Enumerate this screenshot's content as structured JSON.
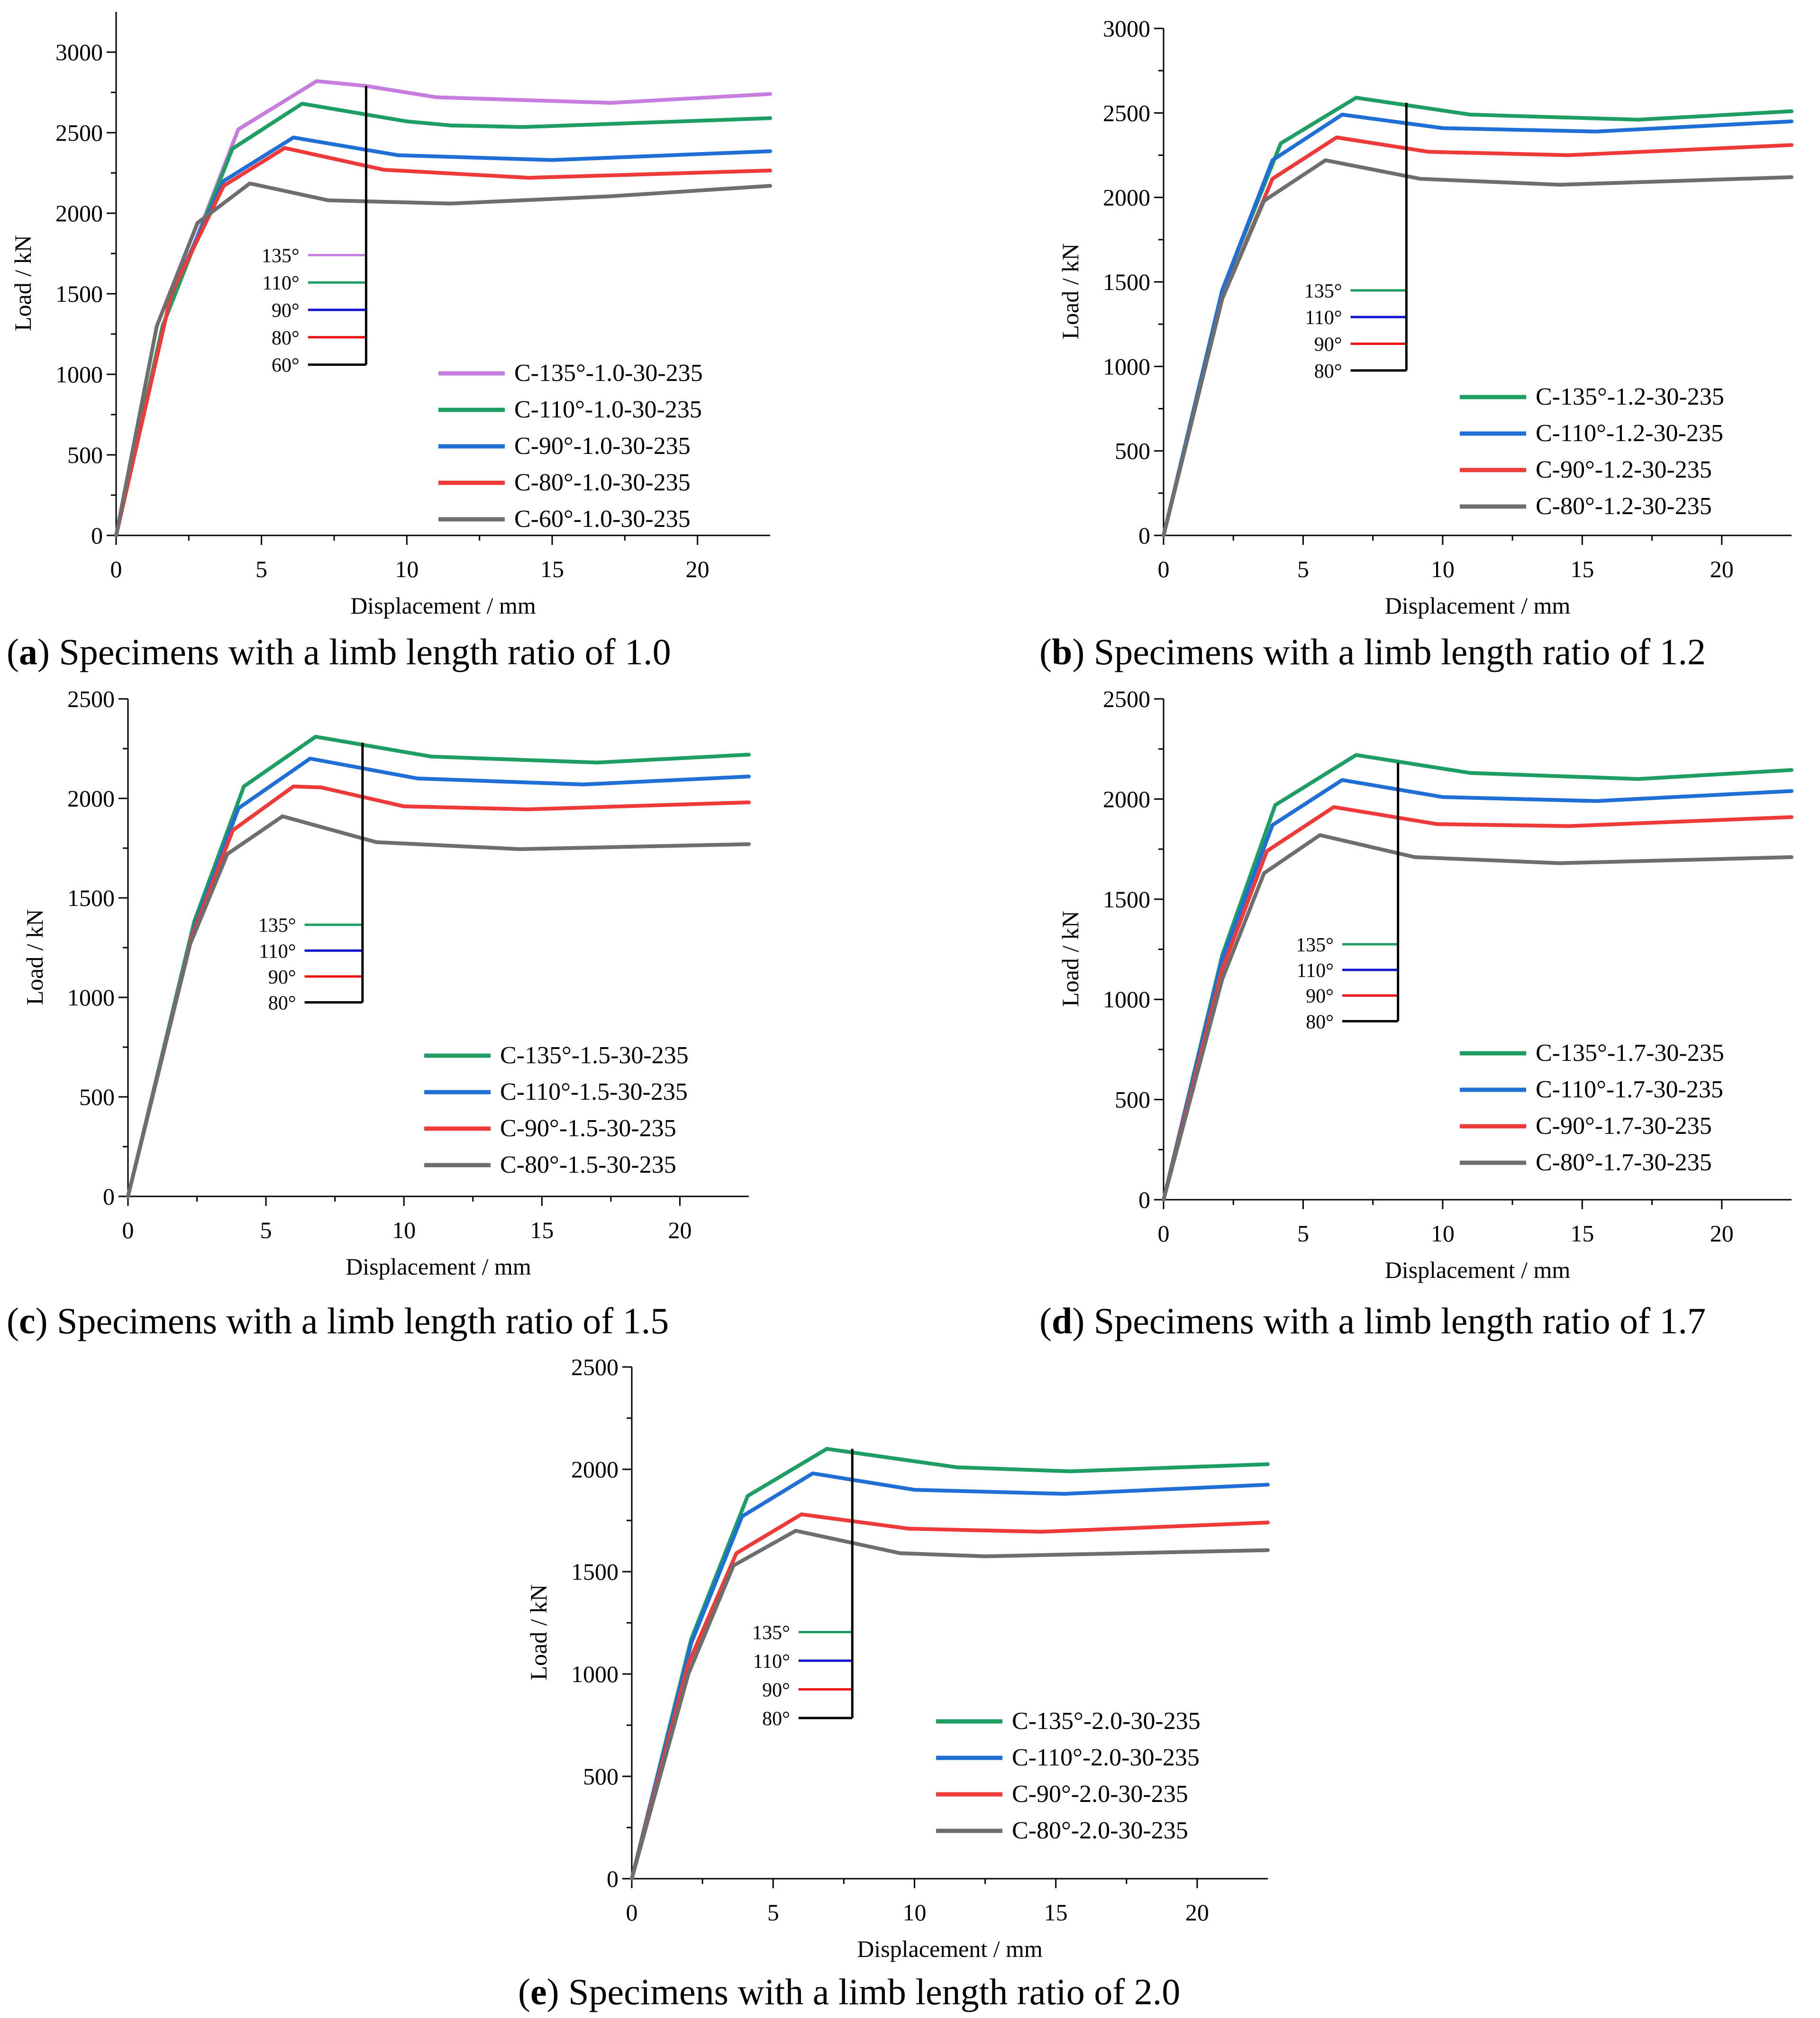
{
  "figure": {
    "panels": [
      {
        "caption_letter": "a",
        "caption_text": " Specimens with a limb length ratio of 1.0"
      },
      {
        "caption_letter": "b",
        "caption_text": " Specimens with a limb length ratio of 1.2"
      },
      {
        "caption_letter": "c",
        "caption_text": " Specimens with a limb length ratio of 1.5"
      },
      {
        "caption_letter": "d",
        "caption_text": " Specimens with a limb length ratio of 1.7"
      },
      {
        "caption_letter": "e",
        "caption_text": " Specimens with a limb length ratio of 2.0"
      }
    ]
  },
  "chart_data": [
    {
      "type": "line",
      "panel": "a",
      "xlabel": "Displacement / mm",
      "ylabel": "Load / kN",
      "xlim": [
        0,
        22.5
      ],
      "ylim": [
        0,
        3250
      ],
      "xticks": [
        0,
        5,
        10,
        15,
        20
      ],
      "yticks": [
        0,
        500,
        1000,
        1500,
        2000,
        2500,
        3000
      ],
      "legend_position": "bottom-right",
      "series": [
        {
          "name": "C-135°-1.0-30-235",
          "color": "#c77ce0",
          "points": [
            [
              0,
              0
            ],
            [
              1.6,
              1300
            ],
            [
              4.2,
              2520
            ],
            [
              6.9,
              2820
            ],
            [
              8.6,
              2790
            ],
            [
              11,
              2720
            ],
            [
              17,
              2685
            ],
            [
              22.5,
              2740
            ]
          ]
        },
        {
          "name": "C-110°-1.0-30-235",
          "color": "#1e9e62",
          "points": [
            [
              0,
              0
            ],
            [
              1.6,
              1300
            ],
            [
              4,
              2400
            ],
            [
              6.4,
              2680
            ],
            [
              10,
              2570
            ],
            [
              11.5,
              2545
            ],
            [
              14,
              2535
            ],
            [
              22.5,
              2590
            ]
          ]
        },
        {
          "name": "C-90°-1.0-30-235",
          "color": "#1f6fd6",
          "points": [
            [
              0,
              0
            ],
            [
              1.9,
              1500
            ],
            [
              3.7,
              2200
            ],
            [
              6.1,
              2470
            ],
            [
              9.7,
              2360
            ],
            [
              15,
              2330
            ],
            [
              22.5,
              2385
            ]
          ]
        },
        {
          "name": "C-80°-1.0-30-235",
          "color": "#ee3a39",
          "points": [
            [
              0,
              0
            ],
            [
              1.9,
              1500
            ],
            [
              3.7,
              2170
            ],
            [
              5.8,
              2405
            ],
            [
              9.2,
              2270
            ],
            [
              14.2,
              2220
            ],
            [
              22.5,
              2265
            ]
          ]
        },
        {
          "name": "C-60°-1.0-30-235",
          "color": "#6e6e6e",
          "points": [
            [
              0,
              0
            ],
            [
              1.4,
              1300
            ],
            [
              2.8,
              1940
            ],
            [
              4.6,
              2185
            ],
            [
              7.3,
              2080
            ],
            [
              11.5,
              2060
            ],
            [
              17,
              2105
            ],
            [
              22.5,
              2170
            ]
          ]
        }
      ],
      "inset_legend": {
        "labels": [
          "135°",
          "110°",
          "90°",
          "80°",
          "60°"
        ],
        "colors": [
          "#c77ce0",
          "#1e9e62",
          "#1010d0",
          "#ee1111",
          "#000000"
        ],
        "x_line": [
          6.6,
          8.6
        ],
        "y_start": 1740,
        "y_step": 170,
        "bracket_x": 8.6,
        "bracket_top": 2790
      }
    },
    {
      "type": "line",
      "panel": "b",
      "xlabel": "Displacement / mm",
      "ylabel": "Load / kN",
      "xlim": [
        0,
        22.5
      ],
      "ylim": [
        0,
        3000
      ],
      "xticks": [
        0,
        5,
        10,
        15,
        20
      ],
      "yticks": [
        0,
        500,
        1000,
        1500,
        2000,
        2500,
        3000
      ],
      "legend_position": "bottom-right",
      "series": [
        {
          "name": "C-135°-1.2-30-235",
          "color": "#1e9e62",
          "points": [
            [
              0,
              0
            ],
            [
              2.1,
              1450
            ],
            [
              4.2,
              2320
            ],
            [
              6.9,
              2590
            ],
            [
              11,
              2490
            ],
            [
              17,
              2460
            ],
            [
              22.5,
              2510
            ]
          ]
        },
        {
          "name": "C-110°-1.2-30-235",
          "color": "#1f6fd6",
          "points": [
            [
              0,
              0
            ],
            [
              2.1,
              1450
            ],
            [
              3.9,
              2220
            ],
            [
              6.4,
              2490
            ],
            [
              10,
              2410
            ],
            [
              15.5,
              2390
            ],
            [
              22.5,
              2450
            ]
          ]
        },
        {
          "name": "C-90°-1.2-30-235",
          "color": "#ee3a39",
          "points": [
            [
              0,
              0
            ],
            [
              2.1,
              1400
            ],
            [
              3.9,
              2110
            ],
            [
              6.2,
              2355
            ],
            [
              9.5,
              2270
            ],
            [
              14.5,
              2250
            ],
            [
              22.5,
              2310
            ]
          ]
        },
        {
          "name": "C-80°-1.2-30-235",
          "color": "#6e6e6e",
          "points": [
            [
              0,
              0
            ],
            [
              2.1,
              1400
            ],
            [
              3.6,
              1980
            ],
            [
              5.8,
              2220
            ],
            [
              9.2,
              2110
            ],
            [
              14.2,
              2075
            ],
            [
              22.5,
              2120
            ]
          ]
        }
      ],
      "inset_legend": {
        "labels": [
          "135°",
          "110°",
          "90°",
          "80°"
        ],
        "colors": [
          "#1e9e62",
          "#1010d0",
          "#ee1111",
          "#000000"
        ],
        "x_line": [
          6.7,
          8.7
        ],
        "y_start": 1450,
        "y_step": 158,
        "bracket_x": 8.7,
        "bracket_top": 2560
      }
    },
    {
      "type": "line",
      "panel": "c",
      "xlabel": "Displacement / mm",
      "ylabel": "Load / kN",
      "xlim": [
        0,
        22.5
      ],
      "ylim": [
        0,
        2500
      ],
      "xticks": [
        0,
        5,
        10,
        15,
        20
      ],
      "yticks": [
        0,
        500,
        1000,
        1500,
        2000,
        2500
      ],
      "legend_position": "bottom-right",
      "series": [
        {
          "name": "C-135°-1.5-30-235",
          "color": "#1e9e62",
          "points": [
            [
              0,
              0
            ],
            [
              2.4,
              1380
            ],
            [
              4.2,
              2060
            ],
            [
              6.8,
              2310
            ],
            [
              11,
              2210
            ],
            [
              17,
              2180
            ],
            [
              22.5,
              2220
            ]
          ]
        },
        {
          "name": "C-110°-1.5-30-235",
          "color": "#1f6fd6",
          "points": [
            [
              0,
              0
            ],
            [
              2.4,
              1350
            ],
            [
              4,
              1950
            ],
            [
              6.6,
              2200
            ],
            [
              10.5,
              2100
            ],
            [
              16.5,
              2070
            ],
            [
              22.5,
              2110
            ]
          ]
        },
        {
          "name": "C-90°-1.5-30-235",
          "color": "#ee3a39",
          "points": [
            [
              0,
              0
            ],
            [
              2.3,
              1300
            ],
            [
              3.8,
              1840
            ],
            [
              6,
              2060
            ],
            [
              7,
              2055
            ],
            [
              10,
              1960
            ],
            [
              14.5,
              1945
            ],
            [
              22.5,
              1980
            ]
          ]
        },
        {
          "name": "C-80°-1.5-30-235",
          "color": "#6e6e6e",
          "points": [
            [
              0,
              0
            ],
            [
              2.2,
              1250
            ],
            [
              3.6,
              1720
            ],
            [
              5.6,
              1910
            ],
            [
              9,
              1780
            ],
            [
              14.2,
              1745
            ],
            [
              22.5,
              1770
            ]
          ]
        }
      ],
      "inset_legend": {
        "labels": [
          "135°",
          "110°",
          "90°",
          "80°"
        ],
        "colors": [
          "#1e9e62",
          "#1010d0",
          "#ee1111",
          "#000000"
        ],
        "x_line": [
          6.4,
          8.5
        ],
        "y_start": 1365,
        "y_step": 130,
        "bracket_x": 8.5,
        "bracket_top": 2280
      }
    },
    {
      "type": "line",
      "panel": "d",
      "xlabel": "Displacement / mm",
      "ylabel": "Load / kN",
      "xlim": [
        0,
        22.5
      ],
      "ylim": [
        0,
        2500
      ],
      "xticks": [
        0,
        5,
        10,
        15,
        20
      ],
      "yticks": [
        0,
        500,
        1000,
        1500,
        2000,
        2500
      ],
      "legend_position": "bottom-right",
      "series": [
        {
          "name": "C-135°-1.7-30-235",
          "color": "#1e9e62",
          "points": [
            [
              0,
              0
            ],
            [
              2.1,
              1220
            ],
            [
              4,
              1970
            ],
            [
              6.9,
              2220
            ],
            [
              11,
              2130
            ],
            [
              17,
              2100
            ],
            [
              22.5,
              2145
            ]
          ]
        },
        {
          "name": "C-110°-1.7-30-235",
          "color": "#1f6fd6",
          "points": [
            [
              0,
              0
            ],
            [
              2.1,
              1200
            ],
            [
              3.9,
              1870
            ],
            [
              6.4,
              2095
            ],
            [
              10,
              2010
            ],
            [
              15.5,
              1990
            ],
            [
              22.5,
              2040
            ]
          ]
        },
        {
          "name": "C-90°-1.7-30-235",
          "color": "#ee3a39",
          "points": [
            [
              0,
              0
            ],
            [
              2.1,
              1150
            ],
            [
              3.7,
              1740
            ],
            [
              6.1,
              1960
            ],
            [
              9.8,
              1875
            ],
            [
              14.5,
              1865
            ],
            [
              22.5,
              1910
            ]
          ]
        },
        {
          "name": "C-80°-1.7-30-235",
          "color": "#6e6e6e",
          "points": [
            [
              0,
              0
            ],
            [
              2.1,
              1100
            ],
            [
              3.6,
              1630
            ],
            [
              5.6,
              1820
            ],
            [
              9,
              1710
            ],
            [
              14.2,
              1680
            ],
            [
              22.5,
              1710
            ]
          ]
        }
      ],
      "inset_legend": {
        "labels": [
          "135°",
          "110°",
          "90°",
          "80°"
        ],
        "colors": [
          "#1e9e62",
          "#1010d0",
          "#ee1111",
          "#000000"
        ],
        "x_line": [
          6.4,
          8.4
        ],
        "y_start": 1275,
        "y_step": 128,
        "bracket_x": 8.4,
        "bracket_top": 2180
      }
    },
    {
      "type": "line",
      "panel": "e",
      "xlabel": "Displacement / mm",
      "ylabel": "Load / kN",
      "xlim": [
        0,
        22.5
      ],
      "ylim": [
        0,
        2500
      ],
      "xticks": [
        0,
        5,
        10,
        15,
        20
      ],
      "yticks": [
        0,
        500,
        1000,
        1500,
        2000,
        2500
      ],
      "legend_position": "bottom-right",
      "series": [
        {
          "name": "C-135°-2.0-30-235",
          "color": "#1e9e62",
          "points": [
            [
              0,
              0
            ],
            [
              2.1,
              1170
            ],
            [
              4.1,
              1870
            ],
            [
              6.9,
              2100
            ],
            [
              11.5,
              2010
            ],
            [
              15.5,
              1990
            ],
            [
              22.5,
              2025
            ]
          ]
        },
        {
          "name": "C-110°-2.0-30-235",
          "color": "#1f6fd6",
          "points": [
            [
              0,
              0
            ],
            [
              2.1,
              1150
            ],
            [
              3.9,
              1770
            ],
            [
              6.4,
              1980
            ],
            [
              10,
              1900
            ],
            [
              15.3,
              1880
            ],
            [
              22.5,
              1925
            ]
          ]
        },
        {
          "name": "C-90°-2.0-30-235",
          "color": "#ee3a39",
          "points": [
            [
              0,
              0
            ],
            [
              2,
              1050
            ],
            [
              3.7,
              1590
            ],
            [
              6,
              1780
            ],
            [
              9.8,
              1710
            ],
            [
              14.5,
              1695
            ],
            [
              22.5,
              1740
            ]
          ]
        },
        {
          "name": "C-80°-2.0-30-235",
          "color": "#6e6e6e",
          "points": [
            [
              0,
              0
            ],
            [
              2,
              1000
            ],
            [
              3.6,
              1530
            ],
            [
              5.8,
              1700
            ],
            [
              9.5,
              1590
            ],
            [
              12.5,
              1575
            ],
            [
              22.5,
              1605
            ]
          ]
        }
      ],
      "inset_legend": {
        "labels": [
          "135°",
          "110°",
          "90°",
          "80°"
        ],
        "colors": [
          "#1e9e62",
          "#1010d0",
          "#ee1111",
          "#000000"
        ],
        "x_line": [
          5.9,
          7.8
        ],
        "y_start": 1205,
        "y_step": 140,
        "bracket_x": 7.8,
        "bracket_top": 2100
      }
    }
  ]
}
